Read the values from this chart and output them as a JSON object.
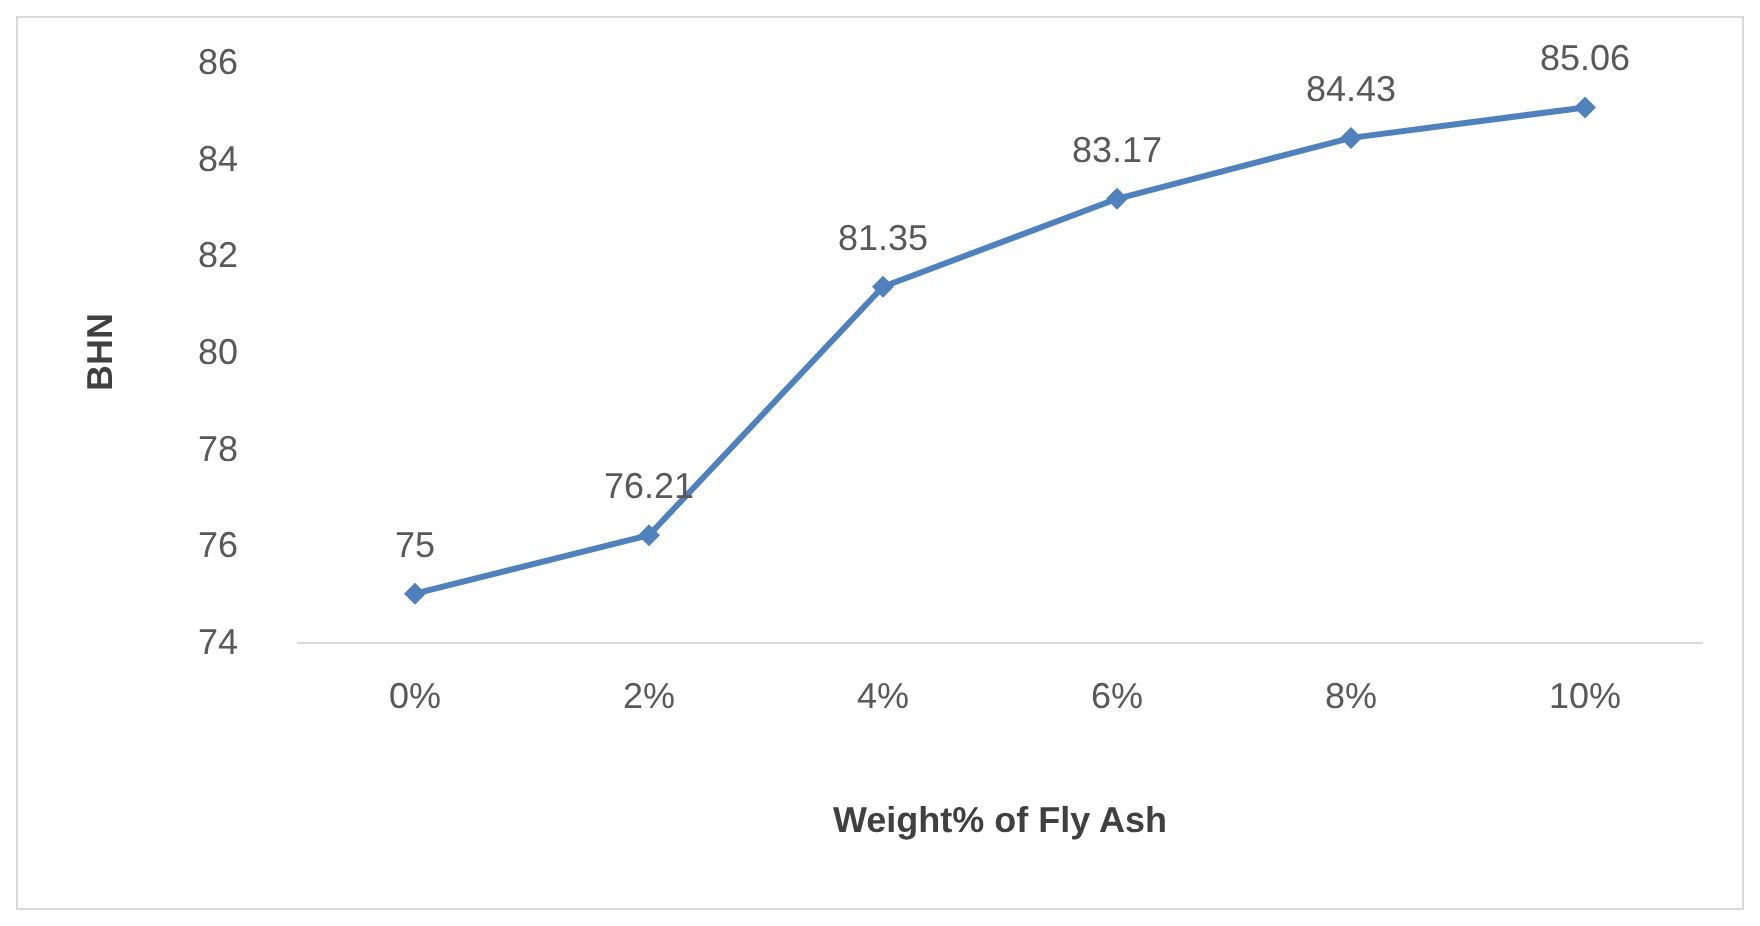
{
  "chart_data": {
    "type": "line",
    "xlabel": "Weight% of Fly Ash",
    "ylabel": "BHN",
    "categories": [
      "0%",
      "2%",
      "4%",
      "6%",
      "8%",
      "10%"
    ],
    "series": [
      {
        "color": "#4f81bd",
        "values": [
          75,
          76.21,
          81.35,
          83.17,
          84.43,
          85.06
        ]
      }
    ],
    "ylim": [
      74,
      86
    ],
    "yticks": [
      74,
      76,
      78,
      80,
      82,
      84,
      86
    ],
    "grid": false,
    "marker": "diamond",
    "line_style": "solid",
    "data_labels": true
  }
}
